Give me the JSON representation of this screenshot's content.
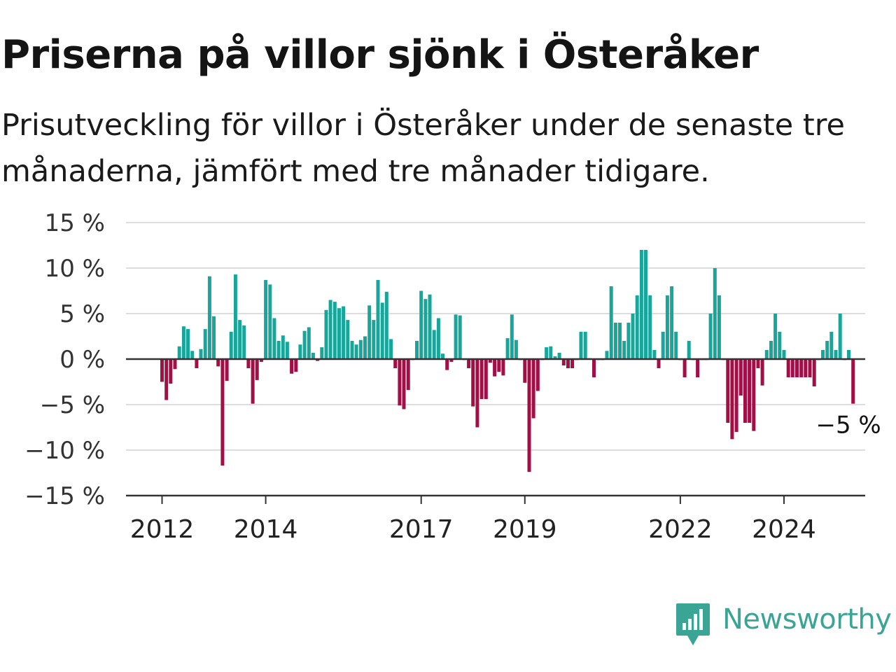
{
  "title": "Priserna på villor sjönk i Österåker",
  "subtitle": "Prisutveckling för villor i Österåker under de senaste tre månaderna, jämfört med tre månader tidigare.",
  "brand": {
    "name": "Newsworthy",
    "icon": "newsworthy-logo-icon"
  },
  "colors": {
    "positive": "#19a69a",
    "negative": "#a10f46",
    "grid": "#dddddd",
    "axis": "#333333"
  },
  "chart_data": {
    "type": "bar",
    "title": "Priserna på villor sjönk i Österåker",
    "xlabel": "",
    "ylabel": "",
    "ylim": [
      -15,
      15
    ],
    "yticks": [
      15,
      10,
      5,
      0,
      -5,
      -10,
      -15
    ],
    "ytick_labels": [
      "15 %",
      "10 %",
      "5 %",
      "0 %",
      "−5 %",
      "−10 %",
      "−15 %"
    ],
    "x_start": "2012-01",
    "x_end": "2025-01",
    "xticks": [
      "2012-01",
      "2014-01",
      "2017-01",
      "2019-01",
      "2022-01",
      "2024-01"
    ],
    "xtick_labels": [
      "2012",
      "2014",
      "2017",
      "2019",
      "2022",
      "2024"
    ],
    "grid": true,
    "series": [
      {
        "values": [
          -2.5,
          -4.5,
          -2.7,
          -1.1,
          1.4,
          3.6,
          3.3,
          0.9,
          -1.0,
          1.1,
          3.3,
          9.1,
          4.7,
          -0.8,
          -11.7,
          -2.4,
          3.0,
          9.3,
          4.3,
          3.7,
          -1.0,
          -4.9,
          -2.3,
          -0.3,
          8.7,
          8.2,
          4.5,
          2.0,
          2.6,
          1.9,
          -1.6,
          -1.4,
          1.6,
          3.1,
          3.5,
          0.7,
          -0.2,
          1.3,
          5.4,
          6.5,
          6.3,
          5.6,
          5.8,
          4.3,
          2.0,
          1.6,
          2.1,
          2.5,
          5.9,
          4.3,
          8.7,
          6.2,
          7.4,
          2.2,
          -1.0,
          -5.1,
          -5.5,
          -3.4,
          -0.1,
          2.0,
          7.5,
          6.6,
          7.1,
          3.2,
          4.5,
          0.6,
          -1.2,
          -0.3,
          4.9,
          4.8,
          -0.1,
          -1.0,
          -5.2,
          -7.5,
          -4.4,
          -4.4,
          -0.4,
          -1.9,
          -1.4,
          -1.8,
          2.3,
          4.9,
          2.1,
          -0.1,
          -2.6,
          -12.4,
          -6.5,
          -3.5,
          -0.1,
          1.3,
          1.4,
          0.3,
          0.7,
          -0.7,
          -1.0,
          -1.0,
          -0.1,
          3.0,
          3.0,
          0.1,
          -2.0,
          -0.1,
          -0.1,
          0.9,
          8.0,
          4.0,
          4.0,
          2.0,
          4.0,
          5.0,
          7.0,
          12.0,
          12.0,
          7.0,
          1.0,
          -1.0,
          3.0,
          7.0,
          8.0,
          3.0,
          -0.1,
          -2.0,
          2.0,
          -0.1,
          -2.0,
          -0.1,
          -0.1,
          5.0,
          10.0,
          7.0,
          -0.1,
          -7.0,
          -8.8,
          -8.0,
          -4.0,
          -7.0,
          -7.0,
          -7.9,
          -1.0,
          -2.9,
          1.0,
          2.0,
          5.0,
          3.0,
          1.0,
          -2.0,
          -2.0,
          -2.0,
          -2.0,
          -2.0,
          -2.0,
          -3.0,
          -0.1,
          1.0,
          2.0,
          3.0,
          1.0,
          5.0,
          -0.1,
          1.0,
          -4.9
        ],
        "last_value_label": "−5 %"
      }
    ]
  }
}
